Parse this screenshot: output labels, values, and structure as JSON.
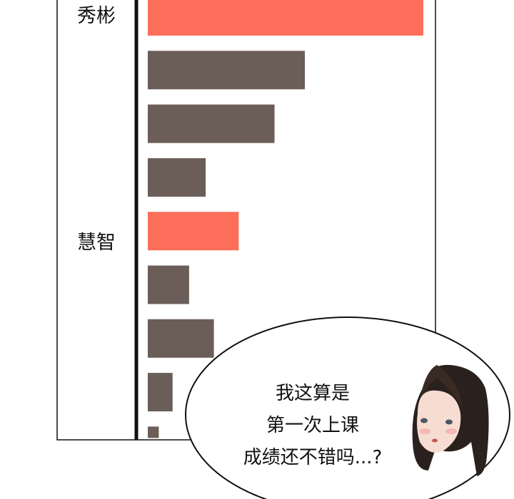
{
  "chart_data": {
    "type": "bar",
    "orientation": "horizontal",
    "categories": [
      "秀彬",
      "",
      "",
      "",
      "慧智",
      "",
      "",
      "",
      ""
    ],
    "values": [
      100,
      57,
      46,
      21,
      33,
      15,
      24,
      9,
      4
    ],
    "highlight": [
      true,
      false,
      false,
      false,
      true,
      false,
      false,
      false,
      false
    ],
    "colors": {
      "highlight": "#fd6f5a",
      "default": "#6b5d58"
    },
    "grid": false
  },
  "speech_bubble": {
    "lines": [
      "我这算是",
      "第一次上课",
      "成绩还不错吗...?"
    ]
  }
}
